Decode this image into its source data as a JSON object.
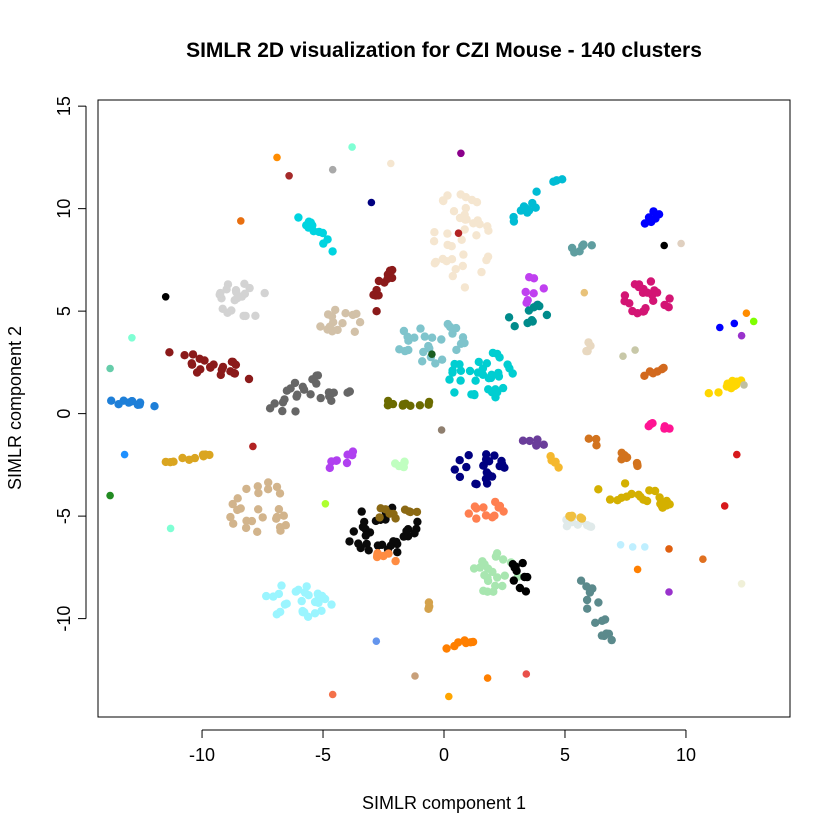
{
  "chart_data": {
    "type": "scatter",
    "title": "SIMLR 2D visualization for CZI Mouse - 140 clusters",
    "xlabel": "SIMLR component 1",
    "ylabel": "SIMLR component 2",
    "xlim": [
      -14.3,
      14.3
    ],
    "ylim": [
      -14.8,
      15.3
    ],
    "xticks": [
      -10,
      -5,
      0,
      5,
      10
    ],
    "xtick_labels": [
      "-10",
      "-5",
      "0",
      "5",
      "10"
    ],
    "yticks": [
      -10,
      -5,
      0,
      5,
      10,
      15
    ],
    "ytick_labels": [
      "-10",
      "-5",
      "0",
      "5",
      "10",
      "15"
    ],
    "grid": false,
    "legend": "none",
    "clusters": [
      {
        "color": "#f5e6d0",
        "cx": 0.6,
        "cy": 8.4,
        "rx": 1.3,
        "ry": 2.4,
        "angle": 0,
        "n": 40
      },
      {
        "color": "#00bcd4",
        "cx": 3.8,
        "cy": 10.4,
        "rx": 1.6,
        "ry": 0.35,
        "angle": 45,
        "n": 14
      },
      {
        "color": "#5f9ea0",
        "cx": 5.6,
        "cy": 8.1,
        "rx": 0.6,
        "ry": 0.2,
        "angle": 15,
        "n": 6
      },
      {
        "color": "#0000ff",
        "cx": 8.6,
        "cy": 9.6,
        "rx": 0.8,
        "ry": 0.25,
        "angle": 20,
        "n": 7
      },
      {
        "color": "#d31574",
        "cx": 8.4,
        "cy": 5.6,
        "rx": 1.0,
        "ry": 0.9,
        "angle": 0,
        "n": 22
      },
      {
        "color": "#c040f0",
        "cx": 3.7,
        "cy": 6.0,
        "rx": 0.5,
        "ry": 0.8,
        "angle": 0,
        "n": 8
      },
      {
        "color": "#008b8b",
        "cx": 3.6,
        "cy": 4.8,
        "rx": 1.1,
        "ry": 0.45,
        "angle": 20,
        "n": 10
      },
      {
        "color": "#00ced1",
        "cx": 1.6,
        "cy": 1.8,
        "rx": 1.5,
        "ry": 1.3,
        "angle": 0,
        "n": 36
      },
      {
        "color": "#7fc4cc",
        "cx": -0.6,
        "cy": 3.5,
        "rx": 1.5,
        "ry": 1.1,
        "angle": 0,
        "n": 26
      },
      {
        "color": "#d2c1a8",
        "cx": -4.3,
        "cy": 4.6,
        "rx": 0.9,
        "ry": 0.9,
        "angle": 0,
        "n": 16
      },
      {
        "color": "#8b1a1a",
        "cx": -2.6,
        "cy": 6.0,
        "rx": 0.4,
        "ry": 1.3,
        "angle": -25,
        "n": 12
      },
      {
        "color": "#00d4e0",
        "cx": -5.3,
        "cy": 8.8,
        "rx": 1.2,
        "ry": 0.3,
        "angle": -55,
        "n": 12
      },
      {
        "color": "#d3d3d3",
        "cx": -8.2,
        "cy": 5.6,
        "rx": 1.2,
        "ry": 0.9,
        "angle": 0,
        "n": 20
      },
      {
        "color": "#8b1a1a",
        "cx": -9.6,
        "cy": 2.4,
        "rx": 1.9,
        "ry": 0.6,
        "angle": -20,
        "n": 22
      },
      {
        "color": "#666666",
        "cx": -5.5,
        "cy": 1.0,
        "rx": 2.0,
        "ry": 0.8,
        "angle": 15,
        "n": 26
      },
      {
        "color": "#1e7fd8",
        "cx": -13.0,
        "cy": 0.5,
        "rx": 1.2,
        "ry": 0.12,
        "angle": -5,
        "n": 10
      },
      {
        "color": "#6b6b00",
        "cx": -1.6,
        "cy": 0.5,
        "rx": 1.2,
        "ry": 0.15,
        "angle": 0,
        "n": 10
      },
      {
        "color": "#d2b48c",
        "cx": -7.6,
        "cy": -4.7,
        "rx": 1.3,
        "ry": 1.4,
        "angle": 0,
        "n": 26
      },
      {
        "color": "#daa520",
        "cx": -10.6,
        "cy": -2.2,
        "rx": 1.4,
        "ry": 0.15,
        "angle": 10,
        "n": 10
      },
      {
        "color": "#b040f0",
        "cx": -4.2,
        "cy": -2.3,
        "rx": 0.9,
        "ry": 0.3,
        "angle": 25,
        "n": 8
      },
      {
        "color": "#c0ffc0",
        "cx": -1.8,
        "cy": -2.5,
        "rx": 0.6,
        "ry": 0.2,
        "angle": -15,
        "n": 6
      },
      {
        "color": "#000080",
        "cx": 1.5,
        "cy": -2.7,
        "rx": 1.1,
        "ry": 0.9,
        "angle": 0,
        "n": 22
      },
      {
        "color": "#ff7f50",
        "cx": 1.7,
        "cy": -4.6,
        "rx": 0.9,
        "ry": 0.6,
        "angle": 0,
        "n": 12
      },
      {
        "color": "#0a0a0a",
        "cx": -2.5,
        "cy": -5.7,
        "rx": 1.6,
        "ry": 1.2,
        "angle": 0,
        "n": 32
      },
      {
        "color": "#8b6914",
        "cx": -2.0,
        "cy": -4.9,
        "rx": 1.0,
        "ry": 0.4,
        "angle": 0,
        "n": 10
      },
      {
        "color": "#ff8c42",
        "cx": -2.3,
        "cy": -7.0,
        "rx": 0.7,
        "ry": 0.25,
        "angle": 0,
        "n": 6
      },
      {
        "color": "#9bf5ff",
        "cx": -5.9,
        "cy": -9.1,
        "rx": 1.6,
        "ry": 0.9,
        "angle": 0,
        "n": 28
      },
      {
        "color": "#a8e6b0",
        "cx": 2.2,
        "cy": -7.8,
        "rx": 1.1,
        "ry": 1.1,
        "angle": 0,
        "n": 22
      },
      {
        "color": "#000000",
        "cx": 3.1,
        "cy": -8.1,
        "rx": 0.5,
        "ry": 0.9,
        "angle": 0,
        "n": 10
      },
      {
        "color": "#5b8a8c",
        "cx": 6.3,
        "cy": -9.6,
        "rx": 1.7,
        "ry": 0.35,
        "angle": -70,
        "n": 16
      },
      {
        "color": "#e0eaea",
        "cx": 5.5,
        "cy": -5.5,
        "rx": 0.6,
        "ry": 0.5,
        "angle": 0,
        "n": 10
      },
      {
        "color": "#f0c040",
        "cx": 5.5,
        "cy": -5.0,
        "rx": 0.4,
        "ry": 0.3,
        "angle": 0,
        "n": 5
      },
      {
        "color": "#d4b000",
        "cx": 7.9,
        "cy": -4.0,
        "rx": 1.6,
        "ry": 0.6,
        "angle": -10,
        "n": 22
      },
      {
        "color": "#d2731e",
        "cx": 7.0,
        "cy": -1.8,
        "rx": 1.4,
        "ry": 0.25,
        "angle": -35,
        "n": 12
      },
      {
        "color": "#6a3d9a",
        "cx": 3.6,
        "cy": -1.4,
        "rx": 0.6,
        "ry": 0.2,
        "angle": -10,
        "n": 6
      },
      {
        "color": "#f5b82e",
        "cx": 4.6,
        "cy": -2.3,
        "rx": 0.5,
        "ry": 0.2,
        "angle": -45,
        "n": 5
      },
      {
        "color": "#ff1493",
        "cx": 8.8,
        "cy": -0.6,
        "rx": 0.6,
        "ry": 0.12,
        "angle": -10,
        "n": 6
      },
      {
        "color": "#ffd700",
        "cx": 11.6,
        "cy": 1.3,
        "rx": 0.9,
        "ry": 0.2,
        "angle": 25,
        "n": 10
      },
      {
        "color": "#d2691e",
        "cx": 8.7,
        "cy": 2.1,
        "rx": 0.6,
        "ry": 0.12,
        "angle": 30,
        "n": 6
      },
      {
        "color": "#ff7f00",
        "cx": 0.8,
        "cy": -11.2,
        "rx": 0.8,
        "ry": 0.12,
        "angle": 20,
        "n": 7
      },
      {
        "color": "#e8d8c0",
        "cx": 6.0,
        "cy": 3.2,
        "rx": 0.12,
        "ry": 0.5,
        "angle": 0,
        "n": 4
      },
      {
        "color": "#d4a24c",
        "cx": -0.7,
        "cy": -9.3,
        "rx": 0.1,
        "ry": 0.3,
        "angle": 0,
        "n": 3
      }
    ],
    "singletons": [
      {
        "x": -6.9,
        "y": 12.5,
        "color": "#ff8c00"
      },
      {
        "x": -6.4,
        "y": 11.6,
        "color": "#a52a2a"
      },
      {
        "x": -4.6,
        "y": 11.9,
        "color": "#a9a9a9"
      },
      {
        "x": -3.8,
        "y": 13.0,
        "color": "#7fffd4"
      },
      {
        "x": -2.2,
        "y": 12.2,
        "color": "#f5e6d0"
      },
      {
        "x": 0.7,
        "y": 12.7,
        "color": "#8b008b"
      },
      {
        "x": -3.0,
        "y": 10.3,
        "color": "#000080"
      },
      {
        "x": -8.4,
        "y": 9.4,
        "color": "#e86f10"
      },
      {
        "x": -11.5,
        "y": 5.7,
        "color": "#000000"
      },
      {
        "x": -12.9,
        "y": 3.7,
        "color": "#7fffd4"
      },
      {
        "x": -13.8,
        "y": 2.2,
        "color": "#66cdaa"
      },
      {
        "x": -13.2,
        "y": -2.0,
        "color": "#1e90ff"
      },
      {
        "x": -13.8,
        "y": -4.0,
        "color": "#228b22"
      },
      {
        "x": -11.3,
        "y": -5.6,
        "color": "#7fffd4"
      },
      {
        "x": -7.9,
        "y": -1.6,
        "color": "#b22222"
      },
      {
        "x": -4.9,
        "y": -4.4,
        "color": "#adff2f"
      },
      {
        "x": -0.1,
        "y": -0.8,
        "color": "#8f7f6f"
      },
      {
        "x": -2.8,
        "y": -11.1,
        "color": "#6495ed"
      },
      {
        "x": -1.2,
        "y": -12.8,
        "color": "#c8a07a"
      },
      {
        "x": -4.6,
        "y": -13.7,
        "color": "#f4714a"
      },
      {
        "x": 0.2,
        "y": -13.8,
        "color": "#ffa500"
      },
      {
        "x": 1.8,
        "y": -12.9,
        "color": "#ff7f00"
      },
      {
        "x": 3.4,
        "y": -12.7,
        "color": "#e9504a"
      },
      {
        "x": 9.1,
        "y": 8.2,
        "color": "#000000"
      },
      {
        "x": 9.8,
        "y": 8.3,
        "color": "#e0d0c0"
      },
      {
        "x": 11.4,
        "y": 4.2,
        "color": "#0000ff"
      },
      {
        "x": 12.0,
        "y": 4.4,
        "color": "#0000ff"
      },
      {
        "x": 12.3,
        "y": 3.8,
        "color": "#9932cc"
      },
      {
        "x": 12.5,
        "y": 4.9,
        "color": "#ff8c00"
      },
      {
        "x": 12.8,
        "y": 4.5,
        "color": "#7fff00"
      },
      {
        "x": 12.4,
        "y": 1.4,
        "color": "#c0c0a0"
      },
      {
        "x": 12.1,
        "y": -2.0,
        "color": "#d7191c"
      },
      {
        "x": 11.6,
        "y": -4.5,
        "color": "#d7191c"
      },
      {
        "x": 10.7,
        "y": -7.1,
        "color": "#e07020"
      },
      {
        "x": 9.3,
        "y": -6.6,
        "color": "#e06010"
      },
      {
        "x": 8.0,
        "y": -7.6,
        "color": "#ff7f00"
      },
      {
        "x": 9.3,
        "y": -8.7,
        "color": "#9932cc"
      },
      {
        "x": 7.3,
        "y": -6.4,
        "color": "#bfefff"
      },
      {
        "x": 7.8,
        "y": -6.5,
        "color": "#bfefff"
      },
      {
        "x": 8.3,
        "y": -6.5,
        "color": "#bfefff"
      },
      {
        "x": 12.3,
        "y": -8.3,
        "color": "#f0f0d8"
      },
      {
        "x": 7.4,
        "y": 2.8,
        "color": "#c8c8a8"
      },
      {
        "x": 7.9,
        "y": 3.1,
        "color": "#c8c8a8"
      },
      {
        "x": -0.5,
        "y": 2.9,
        "color": "#1b5e20"
      },
      {
        "x": 0.6,
        "y": 8.8,
        "color": "#b22222"
      },
      {
        "x": 5.8,
        "y": 5.9,
        "color": "#e8c27a"
      }
    ]
  }
}
